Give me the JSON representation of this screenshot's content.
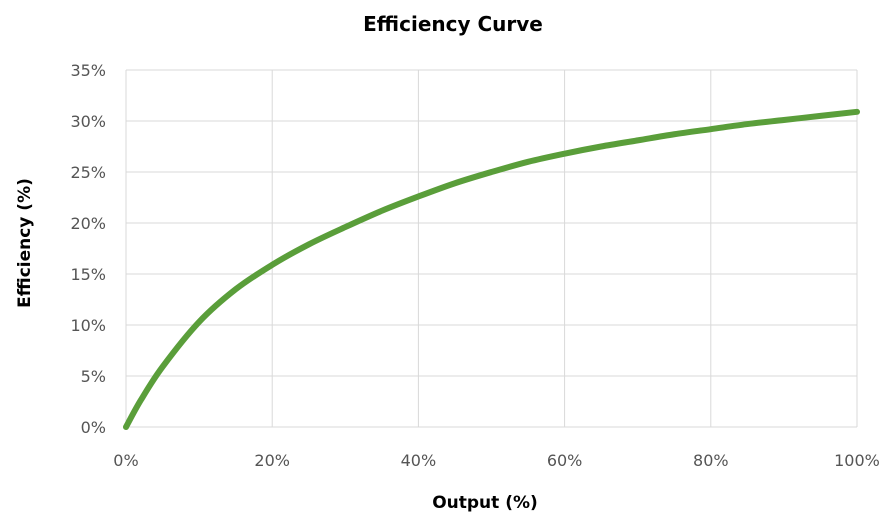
{
  "chart_data": {
    "type": "line",
    "title": "Efficiency Curve",
    "xlabel": "Output (%)",
    "ylabel": "Efficiency (%)",
    "xlim": [
      0,
      100
    ],
    "ylim": [
      0,
      35
    ],
    "x_ticks": [
      {
        "value": 0,
        "label": "0%"
      },
      {
        "value": 20,
        "label": "20%"
      },
      {
        "value": 40,
        "label": "40%"
      },
      {
        "value": 60,
        "label": "60%"
      },
      {
        "value": 80,
        "label": "80%"
      },
      {
        "value": 100,
        "label": "100%"
      }
    ],
    "y_ticks": [
      {
        "value": 0,
        "label": "0%"
      },
      {
        "value": 5,
        "label": "5%"
      },
      {
        "value": 10,
        "label": "10%"
      },
      {
        "value": 15,
        "label": "15%"
      },
      {
        "value": 20,
        "label": "20%"
      },
      {
        "value": 25,
        "label": "25%"
      },
      {
        "value": 30,
        "label": "30%"
      },
      {
        "value": 35,
        "label": "35%"
      }
    ],
    "grid": true,
    "legend": "none",
    "series": [
      {
        "color": "#5a9e3a",
        "x": [
          0,
          2,
          5,
          10,
          15,
          20,
          25,
          30,
          35,
          40,
          45,
          50,
          55,
          60,
          65,
          70,
          75,
          80,
          85,
          90,
          95,
          100
        ],
        "y": [
          0,
          2.6,
          5.9,
          10.3,
          13.5,
          15.9,
          17.9,
          19.6,
          21.2,
          22.6,
          23.9,
          25.0,
          26.0,
          26.8,
          27.5,
          28.1,
          28.7,
          29.2,
          29.7,
          30.1,
          30.5,
          30.9
        ]
      }
    ]
  }
}
